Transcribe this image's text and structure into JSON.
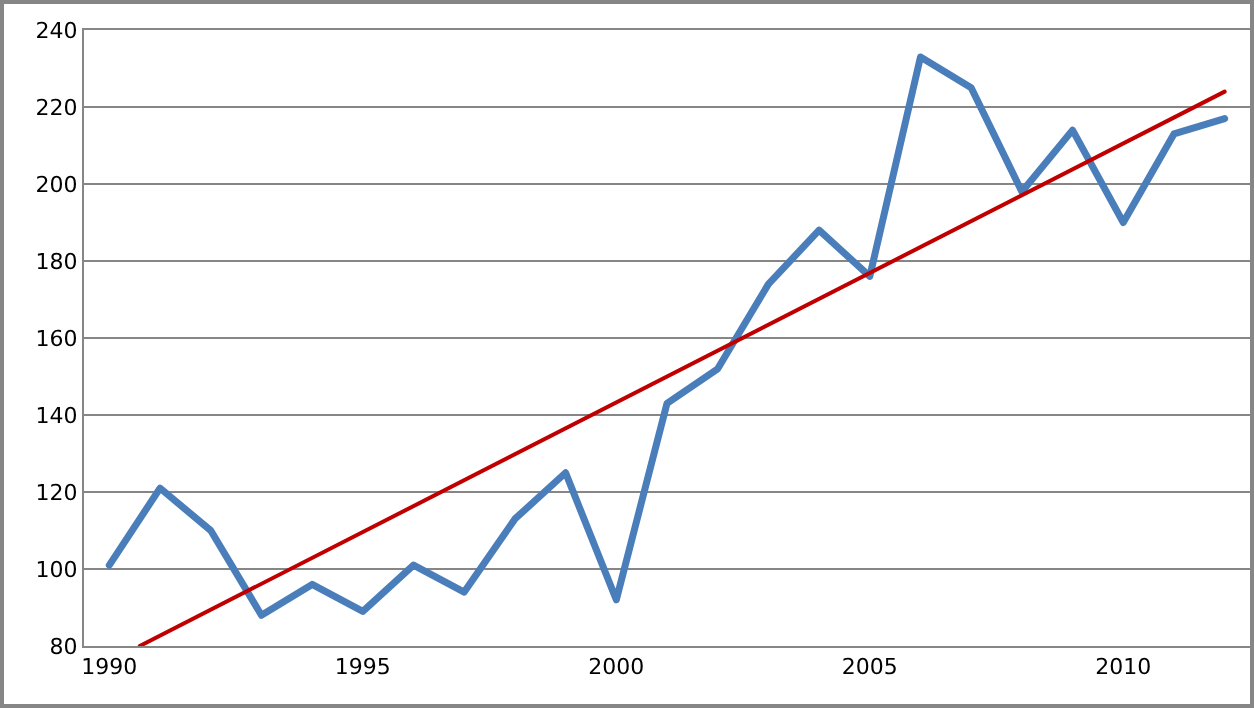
{
  "chart_data": {
    "type": "line",
    "x": [
      1990,
      1991,
      1992,
      1993,
      1994,
      1995,
      1996,
      1997,
      1998,
      1999,
      2000,
      2001,
      2002,
      2003,
      2004,
      2005,
      2006,
      2007,
      2008,
      2009,
      2010,
      2011,
      2012
    ],
    "series": [
      {
        "color": "#4a7ebb",
        "values": [
          101,
          121,
          110,
          88,
          96,
          89,
          101,
          94,
          113,
          125,
          92,
          143,
          152,
          174,
          188,
          176,
          233,
          225,
          198,
          214,
          190,
          213,
          217
        ]
      },
      {
        "type": "line",
        "color": "#c00000",
        "x": [
          1990.6,
          2012
        ],
        "values": [
          80,
          224
        ]
      }
    ],
    "xlim": [
      1989.5,
      2012.5
    ],
    "xticks": [
      1990,
      1995,
      2000,
      2005,
      2010
    ],
    "ylim": [
      80,
      240
    ],
    "yticks": [
      80,
      100,
      120,
      140,
      160,
      180,
      200,
      220,
      240
    ],
    "grid": "y",
    "marker": "none",
    "line_style": "solid"
  }
}
